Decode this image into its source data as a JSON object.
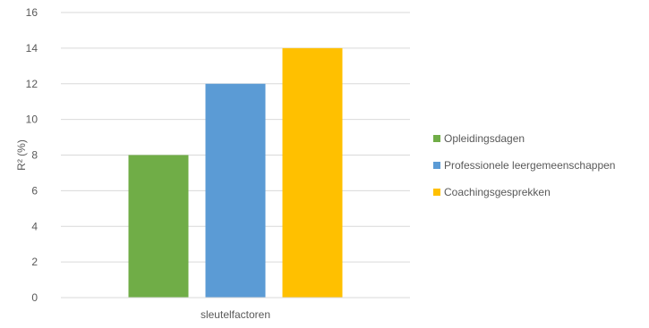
{
  "chart_data": {
    "type": "bar",
    "title": "",
    "xlabel": "sleutelfactoren",
    "ylabel": "R² (%)",
    "categories": [
      "sleutelfactoren"
    ],
    "series": [
      {
        "name": "Opleidingsdagen",
        "values": [
          8
        ],
        "color": "#70AD47"
      },
      {
        "name": "Professionele leergemeenschappen",
        "values": [
          12
        ],
        "color": "#5B9BD5"
      },
      {
        "name": "Coachingsgesprekken",
        "values": [
          14
        ],
        "color": "#FFC000"
      }
    ],
    "ylim": [
      0,
      16
    ],
    "yticks": [
      0,
      2,
      4,
      6,
      8,
      10,
      12,
      14,
      16
    ],
    "grid": true,
    "legend_position": "right"
  }
}
